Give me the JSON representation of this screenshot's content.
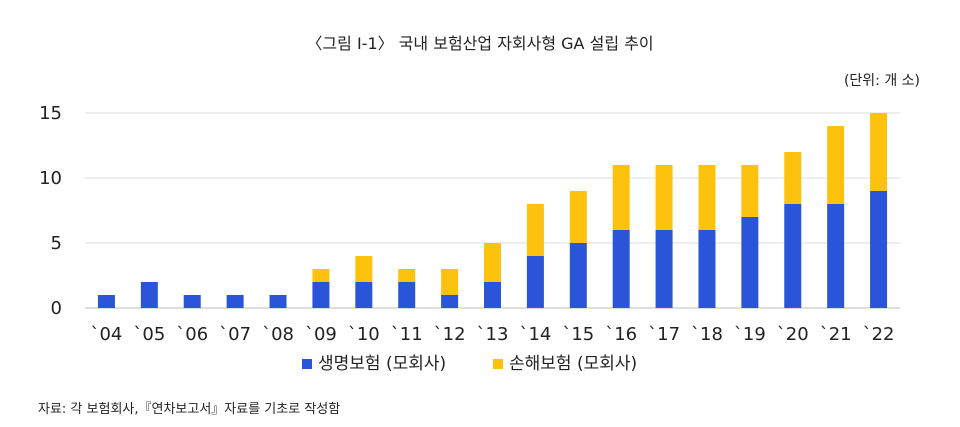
{
  "title": "〈그림 Ⅰ-1〉 국내 보험산업 자회사형 GA 설립 추이",
  "unit_note": "(단위: 개 소)",
  "source_note": "자료: 각 보험회사,『연차보고서』자료를 기초로 작성함",
  "chart_data": {
    "type": "bar",
    "stacked": true,
    "categories": [
      "`04",
      "`05",
      "`06",
      "`07",
      "`08",
      "`09",
      "`10",
      "`11",
      "`12",
      "`13",
      "`14",
      "`15",
      "`16",
      "`17",
      "`18",
      "`19",
      "`20",
      "`21",
      "`22"
    ],
    "series": [
      {
        "name": "생명보험 (모회사)",
        "color": "#2b55d9",
        "values": [
          1,
          2,
          1,
          1,
          1,
          2,
          2,
          2,
          1,
          2,
          4,
          5,
          6,
          6,
          6,
          7,
          8,
          8,
          9
        ]
      },
      {
        "name": "손해보험 (모회사)",
        "color": "#fcc20e",
        "values": [
          0,
          0,
          0,
          0,
          0,
          1,
          2,
          1,
          2,
          3,
          4,
          4,
          5,
          5,
          5,
          4,
          4,
          6,
          6
        ]
      }
    ],
    "ylim": [
      0,
      15
    ],
    "yticks": [
      0,
      5,
      10,
      15
    ],
    "grid": true,
    "legend": "bottom-center"
  }
}
